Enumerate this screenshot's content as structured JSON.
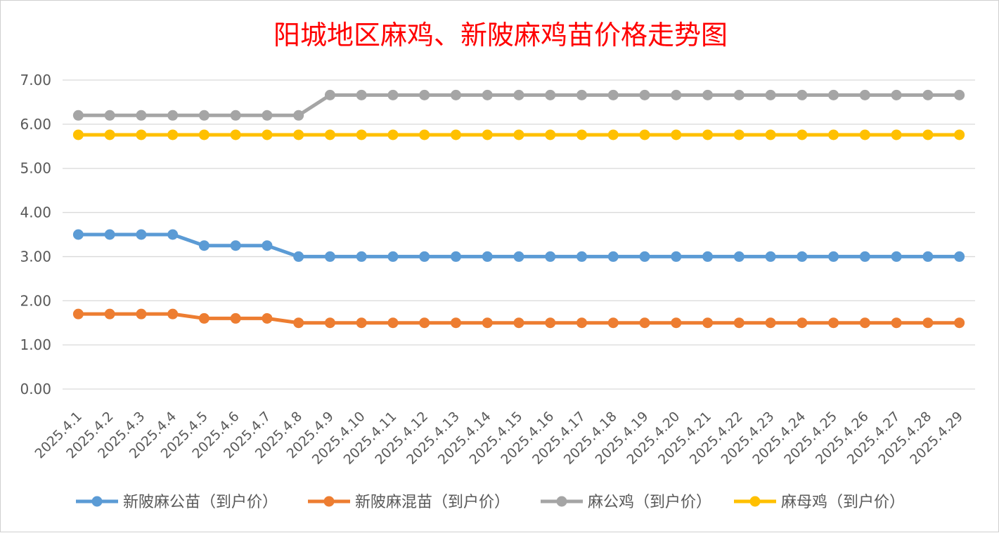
{
  "chart_data": {
    "type": "line",
    "title": "阳城地区麻鸡、新陂麻鸡苗价格走势图",
    "xlabel": "",
    "ylabel": "",
    "ylim": [
      0,
      7
    ],
    "yticks": [
      "0.00",
      "1.00",
      "2.00",
      "3.00",
      "4.00",
      "5.00",
      "6.00",
      "7.00"
    ],
    "grid": true,
    "legend_position": "bottom",
    "categories": [
      "2025.4.1",
      "2025.4.2",
      "2025.4.3",
      "2025.4.4",
      "2025.4.5",
      "2025.4.6",
      "2025.4.7",
      "2025.4.8",
      "2025.4.9",
      "2025.4.10",
      "2025.4.11",
      "2025.4.12",
      "2025.4.13",
      "2025.4.14",
      "2025.4.15",
      "2025.4.16",
      "2025.4.17",
      "2025.4.18",
      "2025.4.19",
      "2025.4.20",
      "2025.4.21",
      "2025.4.22",
      "2025.4.23",
      "2025.4.24",
      "2025.4.25",
      "2025.4.26",
      "2025.4.27",
      "2025.4.28",
      "2025.4.29"
    ],
    "series": [
      {
        "name": "新陂麻公苗（到户价）",
        "color": "#5B9BD5",
        "values": [
          3.5,
          3.5,
          3.5,
          3.5,
          3.25,
          3.25,
          3.25,
          3.0,
          3.0,
          3.0,
          3.0,
          3.0,
          3.0,
          3.0,
          3.0,
          3.0,
          3.0,
          3.0,
          3.0,
          3.0,
          3.0,
          3.0,
          3.0,
          3.0,
          3.0,
          3.0,
          3.0,
          3.0,
          3.0
        ]
      },
      {
        "name": "新陂麻混苗（到户价）",
        "color": "#ED7D31",
        "values": [
          1.7,
          1.7,
          1.7,
          1.7,
          1.6,
          1.6,
          1.6,
          1.5,
          1.5,
          1.5,
          1.5,
          1.5,
          1.5,
          1.5,
          1.5,
          1.5,
          1.5,
          1.5,
          1.5,
          1.5,
          1.5,
          1.5,
          1.5,
          1.5,
          1.5,
          1.5,
          1.5,
          1.5,
          1.5
        ]
      },
      {
        "name": "麻公鸡（到户价）",
        "color": "#A5A5A5",
        "values": [
          6.2,
          6.2,
          6.2,
          6.2,
          6.2,
          6.2,
          6.2,
          6.2,
          6.66,
          6.66,
          6.66,
          6.66,
          6.66,
          6.66,
          6.66,
          6.66,
          6.66,
          6.66,
          6.66,
          6.66,
          6.66,
          6.66,
          6.66,
          6.66,
          6.66,
          6.66,
          6.66,
          6.66,
          6.66
        ]
      },
      {
        "name": "麻母鸡（到户价）",
        "color": "#FFC000",
        "values": [
          5.76,
          5.76,
          5.76,
          5.76,
          5.76,
          5.76,
          5.76,
          5.76,
          5.76,
          5.76,
          5.76,
          5.76,
          5.76,
          5.76,
          5.76,
          5.76,
          5.76,
          5.76,
          5.76,
          5.76,
          5.76,
          5.76,
          5.76,
          5.76,
          5.76,
          5.76,
          5.76,
          5.76,
          5.76
        ]
      }
    ],
    "title_color": "#FF0000",
    "grid_color": "#D9D9D9",
    "text_color": "#595959"
  }
}
